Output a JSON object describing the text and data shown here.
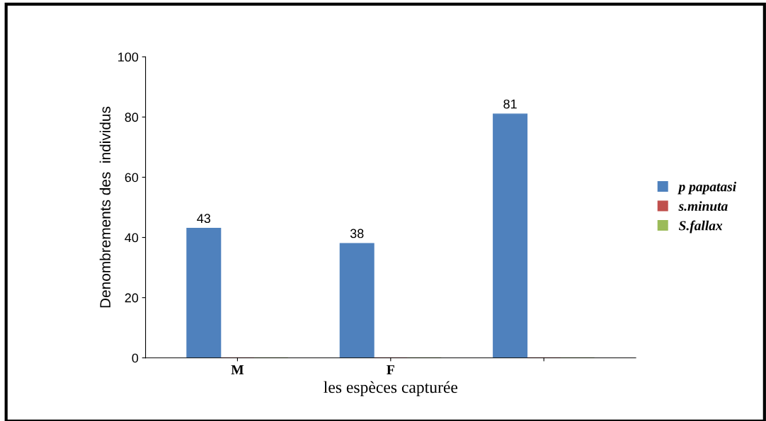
{
  "chart_data": {
    "type": "bar",
    "xlabel": "les espèces capturée",
    "ylabel": "Denombrements des  individus",
    "categories": [
      "M",
      "F",
      null
    ],
    "series": [
      {
        "name": "p papatasi",
        "color": "#4f81bd",
        "values": [
          43,
          38,
          81
        ],
        "value_labels": [
          "43",
          "38",
          "81"
        ]
      },
      {
        "name": "s.minuta",
        "color": "#c0504d",
        "values": [
          0,
          0,
          0
        ]
      },
      {
        "name": "S.fallax",
        "color": "#9bbb59",
        "values": [
          0,
          0,
          0
        ]
      }
    ],
    "ylim": [
      0,
      100
    ],
    "yticks": [
      0,
      20,
      40,
      60,
      80,
      100
    ],
    "grid": false,
    "legend": "right"
  }
}
